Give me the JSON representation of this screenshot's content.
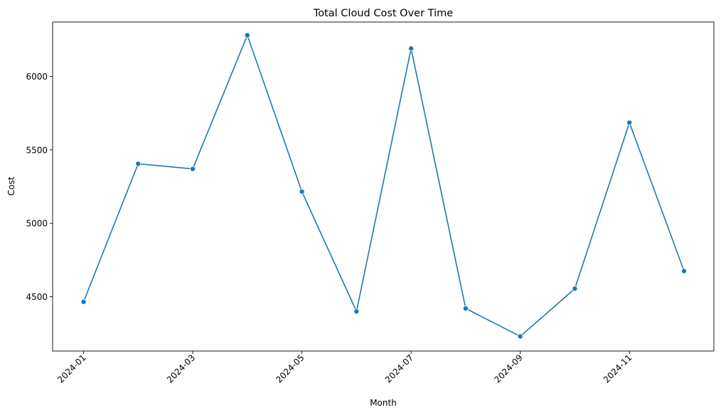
{
  "chart_data": {
    "type": "line",
    "title": "Total Cloud Cost Over Time",
    "xlabel": "Month",
    "ylabel": "Cost",
    "x": [
      "2024-01",
      "2024-02",
      "2024-03",
      "2024-04",
      "2024-05",
      "2024-06",
      "2024-07",
      "2024-08",
      "2024-09",
      "2024-10",
      "2024-11",
      "2024-12"
    ],
    "series": [
      {
        "color": "#1f77b4",
        "marker": "circle",
        "values": [
          4465,
          5405,
          5370,
          6280,
          5215,
          4400,
          6190,
          4420,
          4230,
          4555,
          5685,
          4675
        ]
      }
    ],
    "x_ticks": [
      "2024-01",
      "2024-03",
      "2024-05",
      "2024-07",
      "2024-09",
      "2024-11"
    ],
    "y_ticks": [
      4500,
      5000,
      5500,
      6000
    ],
    "ylim": [
      4130,
      6370
    ],
    "grid": false,
    "x_tick_rotation_deg": 45
  }
}
